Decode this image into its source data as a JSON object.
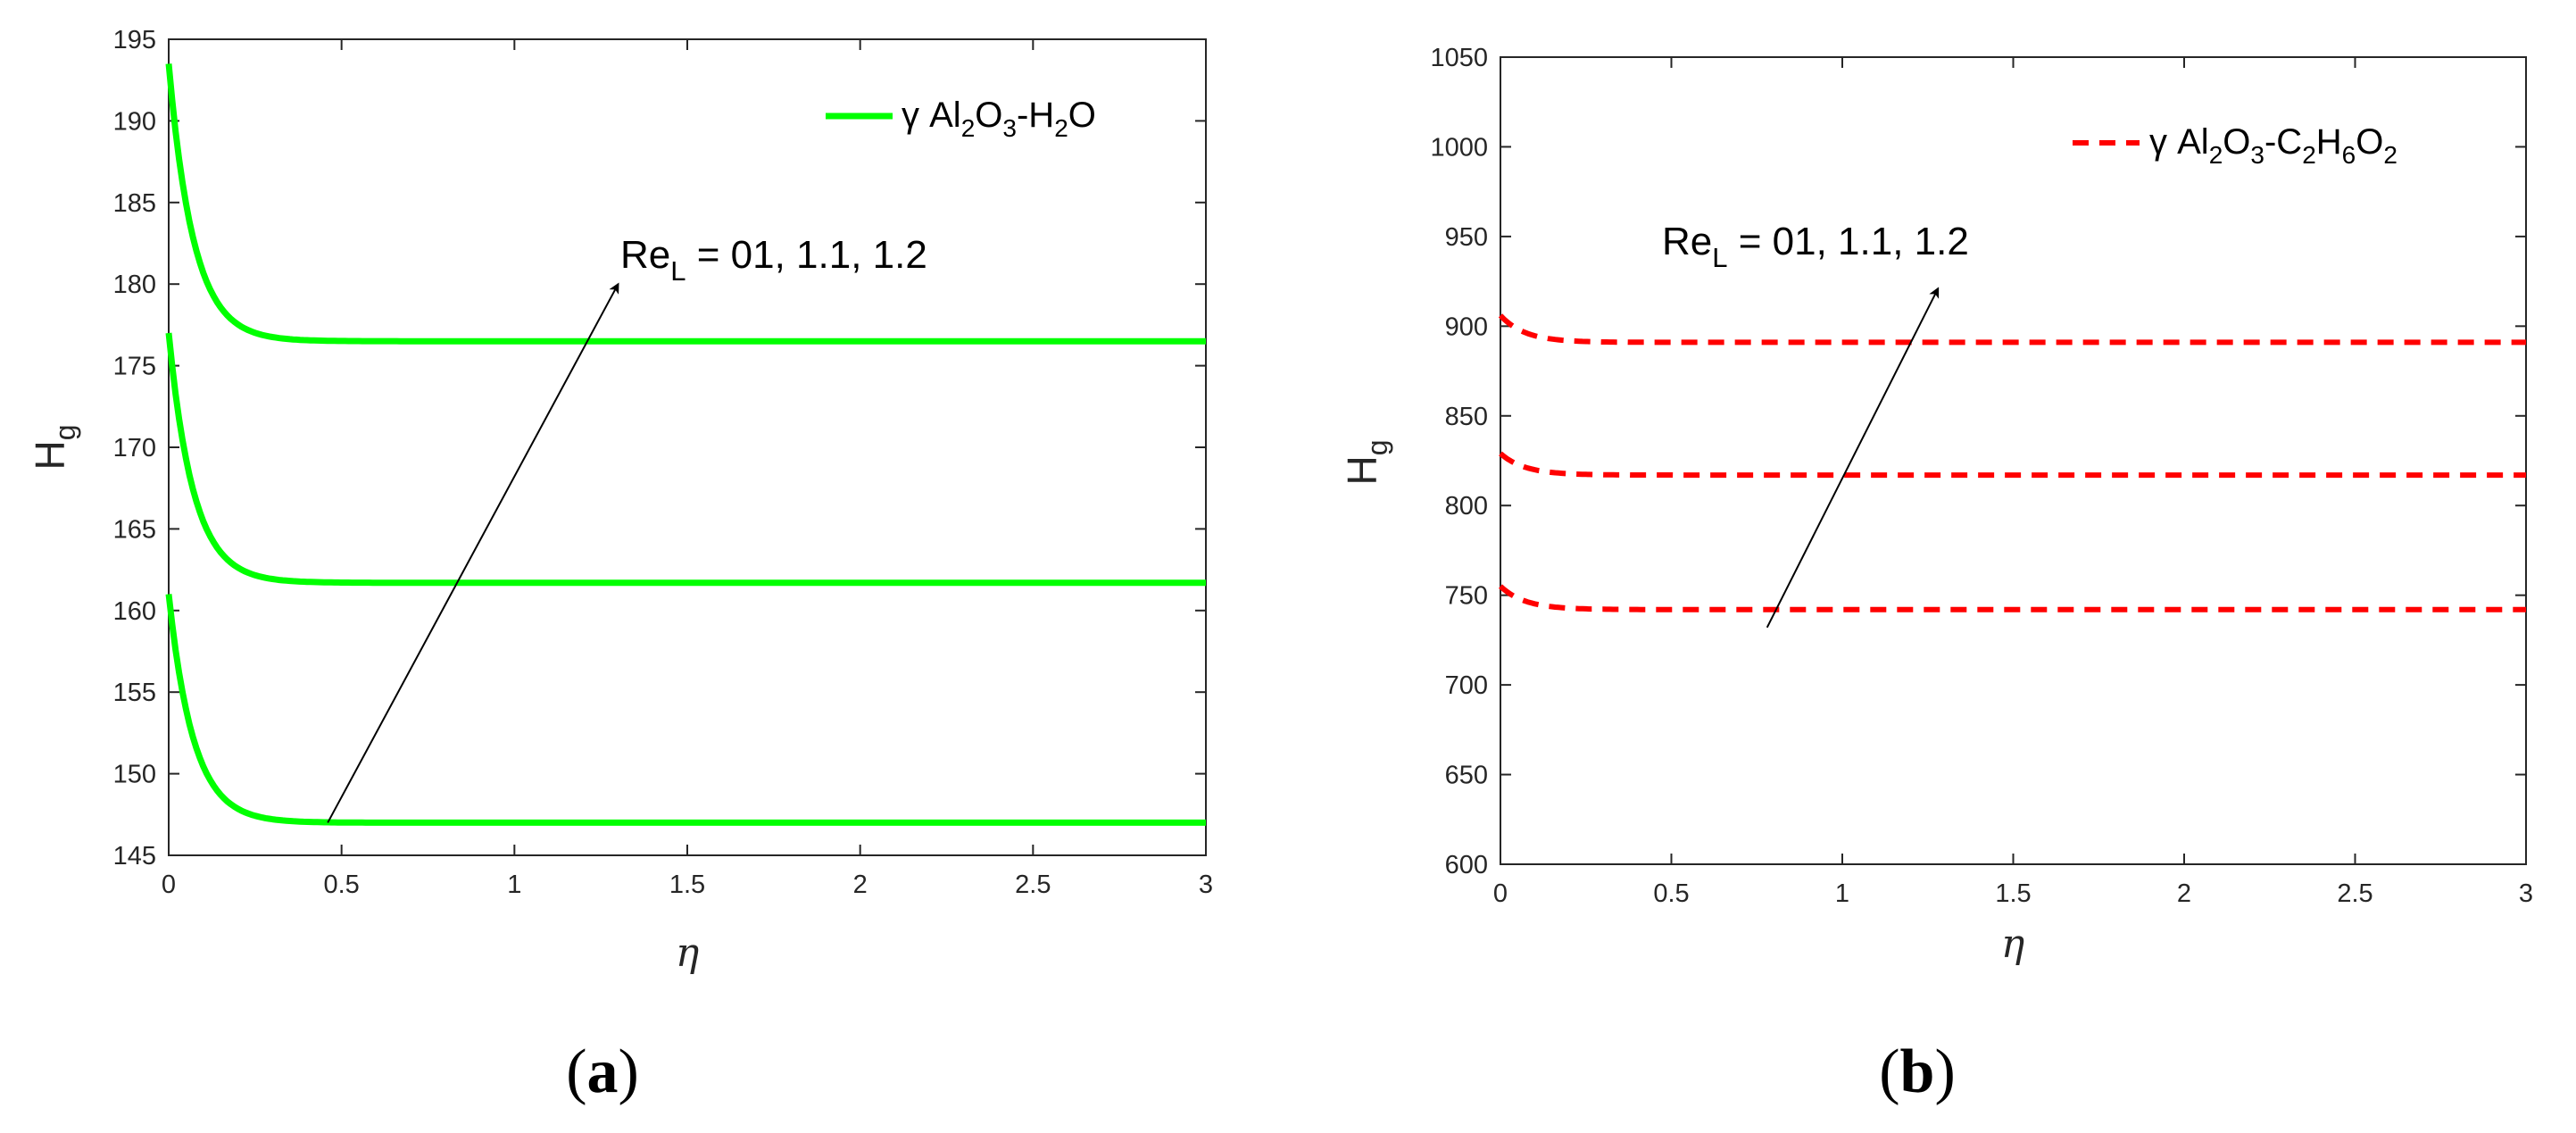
{
  "chart_data": [
    {
      "type": "line",
      "panel_label": {
        "open": "(",
        "letter": "a",
        "close": ")"
      },
      "xlabel": "η",
      "ylabel": {
        "base": "H",
        "sub": "g"
      },
      "xlim": [
        0,
        3
      ],
      "ylim": [
        145,
        195
      ],
      "xticks": [
        0,
        0.5,
        1,
        1.5,
        2,
        2.5,
        3
      ],
      "xtick_labels": [
        "0",
        "0.5",
        "1",
        "1.5",
        "2",
        "2.5",
        "3"
      ],
      "yticks": [
        145,
        150,
        155,
        160,
        165,
        170,
        175,
        180,
        185,
        190,
        195
      ],
      "ytick_labels": [
        "145",
        "150",
        "155",
        "160",
        "165",
        "170",
        "175",
        "180",
        "185",
        "190",
        "195"
      ],
      "grid": false,
      "legend_position": "top-right",
      "legend": [
        {
          "text": "γ Al",
          "sub": "2"
        },
        {
          "text": "O",
          "sub": "3"
        },
        {
          "text": "-H",
          "sub": "2"
        },
        {
          "text": "O",
          "sub": ""
        }
      ],
      "line_style": "solid",
      "color": "#00ff00",
      "annotation": {
        "base": "Re",
        "sub": "L",
        "rest": " = 01, 1.1, 1.2"
      },
      "arrow": {
        "from": [
          0.46,
          147
        ],
        "to": [
          1.3,
          180
        ]
      },
      "decay_rate": 14,
      "series": [
        {
          "start": 161,
          "end": 147
        },
        {
          "start": 177,
          "end": 161.7
        },
        {
          "start": 193.5,
          "end": 176.5
        }
      ]
    },
    {
      "type": "line",
      "panel_label": {
        "open": "(",
        "letter": "b",
        "close": ")"
      },
      "xlabel": "η",
      "ylabel": {
        "base": "H",
        "sub": "g"
      },
      "xlim": [
        0,
        3
      ],
      "ylim": [
        600,
        1050
      ],
      "xticks": [
        0,
        0.5,
        1,
        1.5,
        2,
        2.5,
        3
      ],
      "xtick_labels": [
        "0",
        "0.5",
        "1",
        "1.5",
        "2",
        "2.5",
        "3"
      ],
      "yticks": [
        600,
        650,
        700,
        750,
        800,
        850,
        900,
        950,
        1000,
        1050
      ],
      "ytick_labels": [
        "600",
        "650",
        "700",
        "750",
        "800",
        "850",
        "900",
        "950",
        "1000",
        "1050"
      ],
      "grid": false,
      "legend_position": "top-right",
      "legend": [
        {
          "text": "γ Al",
          "sub": "2"
        },
        {
          "text": "O",
          "sub": "3"
        },
        {
          "text": "-C",
          "sub": "2"
        },
        {
          "text": "H",
          "sub": "6"
        },
        {
          "text": "O",
          "sub": "2"
        }
      ],
      "line_style": "dashed",
      "color": "#ff0000",
      "annotation": {
        "base": "Re",
        "sub": "L",
        "rest": " = 01, 1.1, 1.2"
      },
      "arrow": {
        "from": [
          0.78,
          732
        ],
        "to": [
          1.28,
          921
        ]
      },
      "decay_rate": 14,
      "series": [
        {
          "start": 755,
          "end": 742
        },
        {
          "start": 829,
          "end": 817
        },
        {
          "start": 906,
          "end": 891
        }
      ]
    }
  ]
}
